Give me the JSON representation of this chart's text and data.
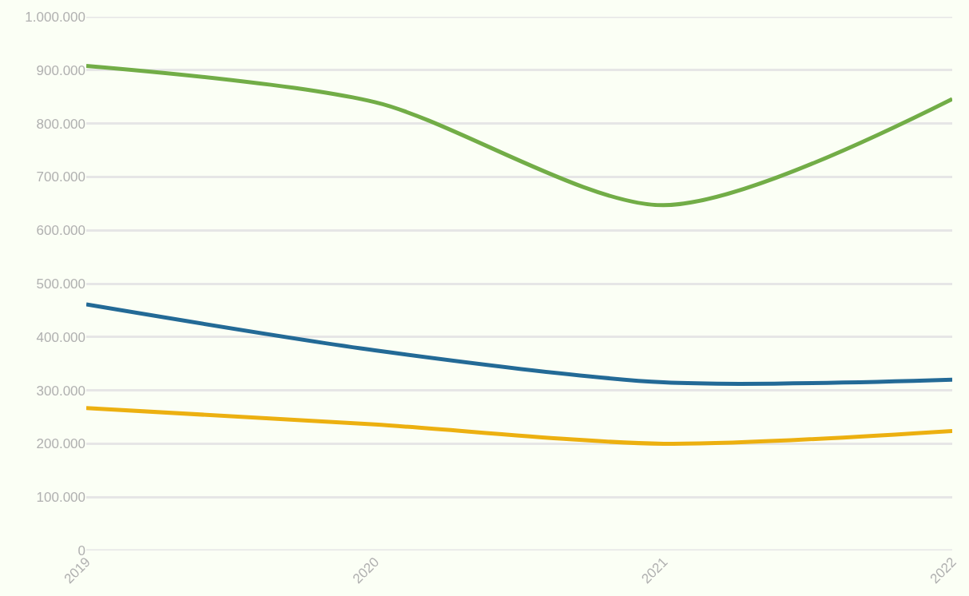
{
  "chart_data": {
    "type": "line",
    "x": [
      2019,
      2020,
      2021,
      2022
    ],
    "series": [
      {
        "color": "#72ad47",
        "values": [
          908000,
          840000,
          647000,
          846000
        ]
      },
      {
        "color": "#236a96",
        "values": [
          461000,
          375000,
          315000,
          320000
        ]
      },
      {
        "color": "#ecb010",
        "values": [
          267000,
          236000,
          200000,
          224000
        ]
      }
    ],
    "xlim": [
      2019,
      2022
    ],
    "xticks": [
      2019,
      2020,
      2021,
      2022
    ],
    "ylim": [
      0,
      1000000
    ],
    "yticks": [
      0,
      {
        "value": 100000,
        "label": "100.000"
      },
      {
        "value": 200000,
        "label": "200.000"
      },
      {
        "value": 300000,
        "label": "300.000"
      },
      {
        "value": 400000,
        "label": "400.000"
      },
      {
        "value": 500000,
        "label": "500.000"
      },
      {
        "value": 600000,
        "label": "600.000"
      },
      {
        "value": 700000,
        "label": "700.000"
      },
      {
        "value": 800000,
        "label": "800.000"
      },
      {
        "value": 900000,
        "label": "900.000"
      },
      {
        "value": 1000000,
        "label": "1.000.000"
      }
    ],
    "grid": "y",
    "marker": "none",
    "line_style": "solid"
  }
}
